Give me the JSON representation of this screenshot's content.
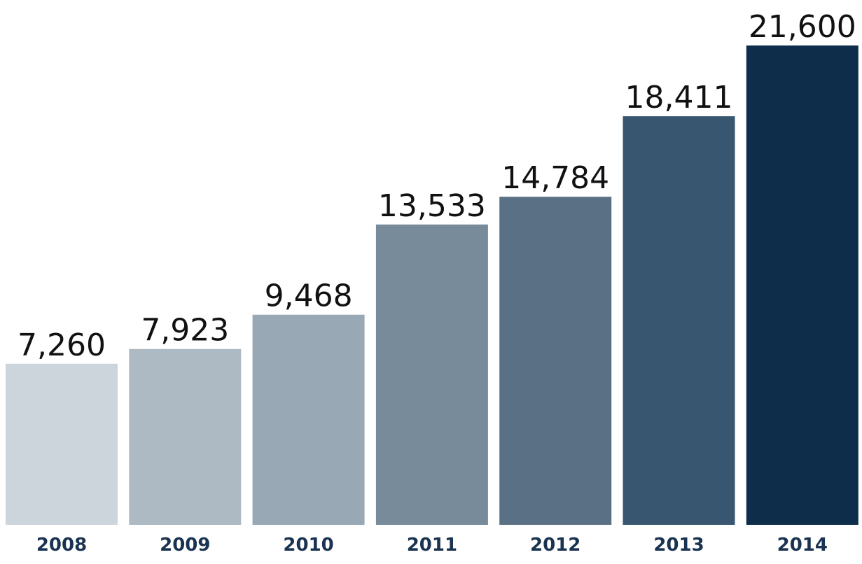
{
  "chart_data": {
    "type": "bar",
    "categories": [
      "2008",
      "2009",
      "2010",
      "2011",
      "2012",
      "2013",
      "2014"
    ],
    "values": [
      7260,
      7923,
      9468,
      13533,
      14784,
      18411,
      21600
    ],
    "value_labels": [
      "7,260",
      "7,923",
      "9,468",
      "13,533",
      "14,784",
      "18,411",
      "21,600"
    ],
    "colors": [
      "#cdd5dc",
      "#adb9c3",
      "#98a8b5",
      "#778b9b",
      "#5a7185",
      "#38566f",
      "#0e2d4b"
    ]
  }
}
